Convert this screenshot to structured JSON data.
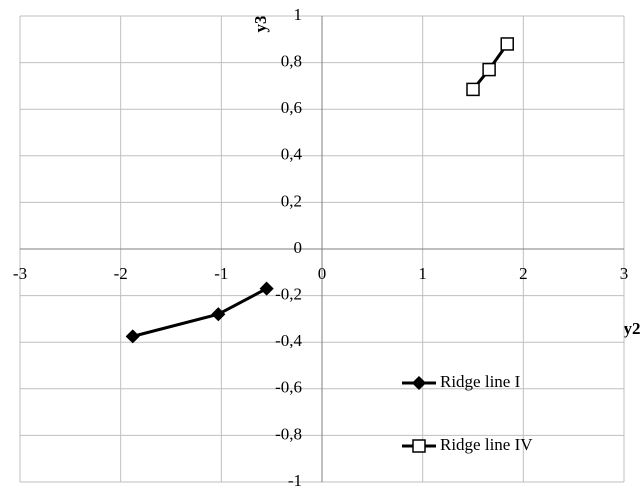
{
  "chart_data": {
    "type": "scatter",
    "xlabel": "y2",
    "ylabel": "y3",
    "xlim": [
      -3,
      3
    ],
    "ylim": [
      -1,
      1
    ],
    "xticks": [
      -3,
      -2,
      -1,
      0,
      1,
      2,
      3
    ],
    "yticks": [
      -1,
      {
        "value": -0.8,
        "label": "-0,8"
      },
      {
        "value": -0.6,
        "label": "-0,6"
      },
      {
        "value": -0.4,
        "label": "-0,4"
      },
      {
        "value": -0.2,
        "label": "-0,2"
      },
      0,
      {
        "value": 0.2,
        "label": "0,2"
      },
      {
        "value": 0.4,
        "label": "0,4"
      },
      {
        "value": 0.6,
        "label": "0,6"
      },
      {
        "value": 0.8,
        "label": "0,8"
      },
      1
    ],
    "grid": true,
    "legend": "lower right",
    "series": [
      {
        "name": "Ridge line I",
        "color": "#000000",
        "marker": "diamond",
        "marker_fill": "#000000",
        "x": [
          -1.88,
          -1.03,
          -0.55
        ],
        "values": [
          -0.375,
          -0.28,
          -0.17
        ]
      },
      {
        "name": "Ridge line IV",
        "color": "#000000",
        "marker": "square",
        "marker_fill": "#ffffff",
        "x": [
          1.5,
          1.66,
          1.84
        ],
        "values": [
          0.685,
          0.77,
          0.88
        ]
      }
    ]
  }
}
